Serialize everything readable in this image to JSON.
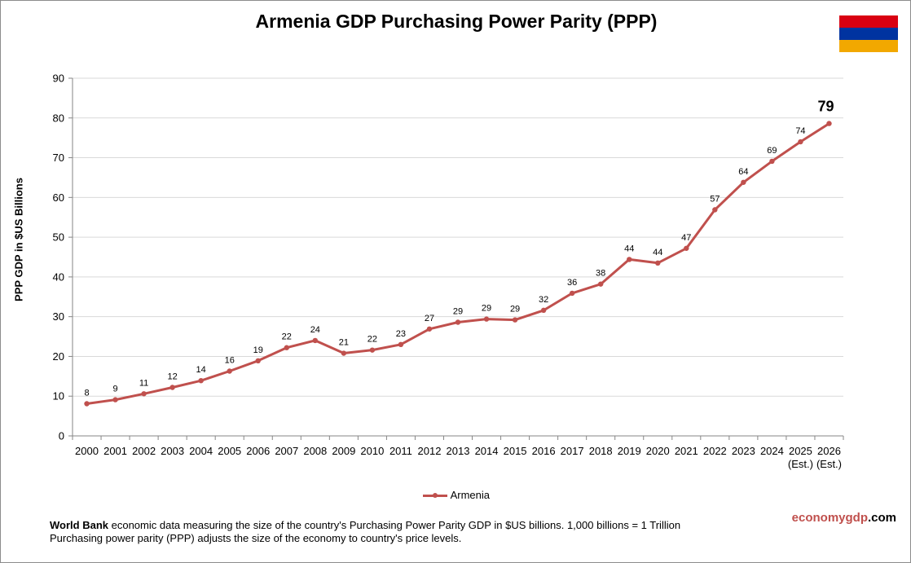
{
  "chart_data": {
    "type": "line",
    "title": "Armenia GDP Purchasing Power Parity (PPP)",
    "ylabel": "PPP GDP in $US Billions",
    "xlabel": "",
    "ylim": [
      0,
      90
    ],
    "yticks": [
      "0",
      "10",
      "20",
      "30",
      "40",
      "50",
      "60",
      "70",
      "80",
      "90"
    ],
    "grid": true,
    "legend_position": "bottom",
    "categories": [
      "2000",
      "2001",
      "2002",
      "2003",
      "2004",
      "2005",
      "2006",
      "2007",
      "2008",
      "2009",
      "2010",
      "2011",
      "2012",
      "2013",
      "2014",
      "2015",
      "2016",
      "2017",
      "2018",
      "2019",
      "2020",
      "2021",
      "2022",
      "2023",
      "2024",
      "2025",
      "2026"
    ],
    "category_notes": [
      "",
      "",
      "",
      "",
      "",
      "",
      "",
      "",
      "",
      "",
      "",
      "",
      "",
      "",
      "",
      "",
      "",
      "",
      "",
      "",
      "",
      "",
      "",
      "",
      "",
      "(Est.)",
      "(Est.)"
    ],
    "series": [
      {
        "name": "Armenia",
        "color": "#c0504d",
        "values": [
          8.1,
          9.1,
          10.6,
          12.2,
          13.9,
          16.3,
          18.9,
          22.2,
          24.0,
          20.8,
          21.6,
          23.0,
          26.9,
          28.6,
          29.4,
          29.2,
          31.6,
          35.9,
          38.2,
          44.4,
          43.5,
          47.2,
          56.9,
          63.8,
          69.1,
          74.0,
          78.6
        ],
        "labels": [
          "8",
          "9",
          "11",
          "12",
          "14",
          "16",
          "19",
          "22",
          "24",
          "21",
          "22",
          "23",
          "27",
          "29",
          "29",
          "29",
          "32",
          "36",
          "38",
          "44",
          "44",
          "47",
          "57",
          "64",
          "69",
          "74",
          "79"
        ]
      }
    ]
  },
  "flag": {
    "colors": [
      "#d90012",
      "#0033a0",
      "#f2a800"
    ]
  },
  "footnote": {
    "source": "World Bank",
    "line1": " economic data measuring the size  of the country's Purchasing Power Parity GDP in $US billions. 1,000 billions = 1 Trillion",
    "line2": "Purchasing power parity (PPP)  adjusts the size of the economy to country's price levels."
  },
  "brand": {
    "part1": "economygdp",
    "part2": ".com"
  }
}
